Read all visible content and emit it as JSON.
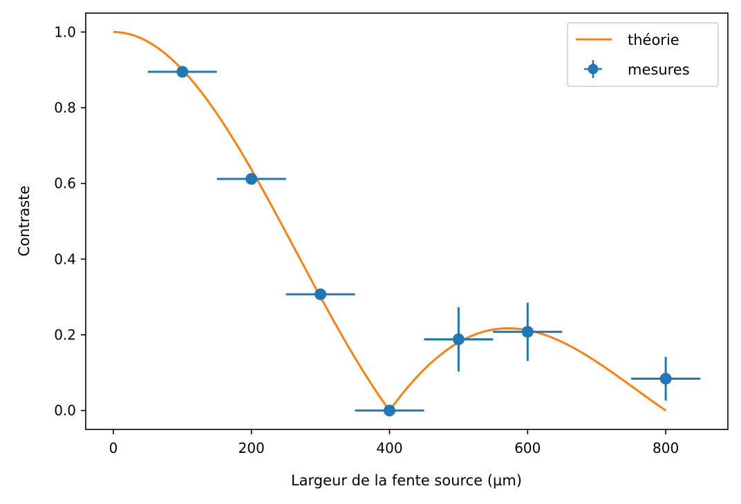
{
  "chart_data": {
    "type": "scatter",
    "title": "",
    "xlabel": "Largeur de la fente source (µm)",
    "ylabel": "Contraste",
    "xlim": [
      -40,
      890
    ],
    "ylim": [
      -0.05,
      1.05
    ],
    "xticks": [
      0,
      200,
      400,
      600,
      800
    ],
    "xtick_labels": [
      "0",
      "200",
      "400",
      "600",
      "800"
    ],
    "yticks": [
      0.0,
      0.2,
      0.4,
      0.6,
      0.8,
      1.0
    ],
    "ytick_labels": [
      "0.0",
      "0.2",
      "0.4",
      "0.6",
      "0.8",
      "1.0"
    ],
    "grid": false,
    "legend_position": "top-right",
    "series": [
      {
        "name": "théorie",
        "kind": "line",
        "color": "#ff7f0e",
        "model": "abs(sinc(x/400))",
        "x_range": [
          0,
          800
        ]
      },
      {
        "name": "mesures",
        "kind": "errorbar",
        "color": "#1f77b4",
        "points": [
          {
            "x": 100,
            "y": 0.895,
            "xerr": 50,
            "yerr": 0.0
          },
          {
            "x": 200,
            "y": 0.612,
            "xerr": 50,
            "yerr": 0.0
          },
          {
            "x": 300,
            "y": 0.307,
            "xerr": 50,
            "yerr": 0.0
          },
          {
            "x": 400,
            "y": 0.0,
            "xerr": 50,
            "yerr": 0.0
          },
          {
            "x": 500,
            "y": 0.188,
            "xerr": 50,
            "yerr": 0.085
          },
          {
            "x": 600,
            "y": 0.208,
            "xerr": 50,
            "yerr": 0.077
          },
          {
            "x": 800,
            "y": 0.084,
            "xerr": 50,
            "yerr": 0.058
          }
        ]
      }
    ]
  }
}
